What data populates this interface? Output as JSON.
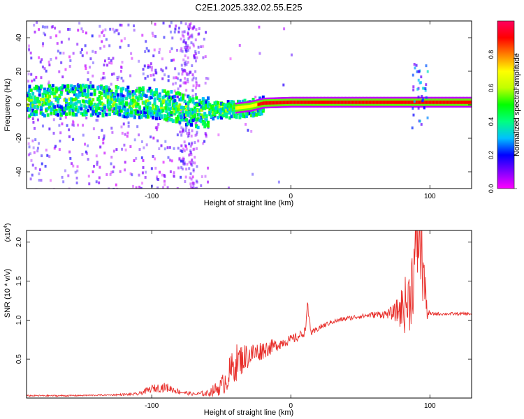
{
  "figure": {
    "title": "C2E1.2025.332.02.55.E25"
  },
  "colorbar": {
    "label": "Normalized spectral amplitude",
    "ticks": [
      "0.0",
      "0.2",
      "0.4",
      "0.6",
      "0.8"
    ],
    "tick_values": [
      0.0,
      0.2,
      0.4,
      0.6,
      0.8
    ],
    "colormap": [
      "#ff00ff",
      "#8000ff",
      "#0000ff",
      "#00c0ff",
      "#00ff80",
      "#00ff00",
      "#c0ff00",
      "#ffff00",
      "#ff8000",
      "#ff0000",
      "#ff0060"
    ]
  },
  "chart_data": [
    {
      "type": "heatmap",
      "title": "C2E1.2025.332.02.55.E25",
      "xlabel": "Height of straight line (km)",
      "ylabel": "Frequency (Hz)",
      "xlim": [
        -190,
        130
      ],
      "ylim": [
        -50,
        50
      ],
      "xticks": [
        -100,
        0,
        100
      ],
      "xtick_labels": [
        "-100",
        "0",
        "100"
      ],
      "yticks": [
        40,
        20,
        0,
        -20,
        -40
      ],
      "ytick_labels": [
        "40",
        "20",
        "0",
        "-20",
        "-40"
      ],
      "value_label": "Normalized spectral amplitude",
      "value_range": [
        0,
        1
      ],
      "ridge": {
        "description": "dominant frequency vs height",
        "x": [
          -190,
          -160,
          -130,
          -100,
          -80,
          -70,
          -60,
          -50,
          -40,
          -30,
          -20,
          0,
          20,
          40,
          60,
          80,
          90,
          100,
          130
        ],
        "y": [
          3,
          4,
          3,
          2,
          -1,
          -4,
          -3,
          -2,
          -2,
          -1,
          1,
          1.5,
          1.5,
          1.5,
          1.5,
          1.5,
          1.5,
          1.5,
          1.5
        ]
      },
      "grid": false
    },
    {
      "type": "line",
      "xlabel": "Height of straight line (km)",
      "ylabel": "SNR (10 * v/v)",
      "scale_label": "(x10",
      "scale_exponent": "4",
      "xlim": [
        -190,
        130
      ],
      "ylim": [
        0,
        2.15
      ],
      "xticks": [
        -100,
        0,
        100
      ],
      "xtick_labels": [
        "-100",
        "0",
        "100"
      ],
      "yticks": [
        0.5,
        1.0,
        1.5,
        2.0
      ],
      "ytick_labels": [
        "0.5",
        "1.0",
        "1.5",
        "2.0"
      ],
      "series": [
        {
          "color": "#e8302c",
          "x": [
            -190,
            -160,
            -130,
            -110,
            -100,
            -90,
            -80,
            -70,
            -60,
            -50,
            -45,
            -40,
            -35,
            -30,
            -25,
            -20,
            -15,
            -10,
            -5,
            0,
            5,
            10,
            12,
            15,
            20,
            30,
            40,
            50,
            60,
            70,
            75,
            80,
            85,
            88,
            92,
            95,
            98,
            100,
            110,
            120,
            130
          ],
          "y": [
            0.03,
            0.03,
            0.04,
            0.05,
            0.12,
            0.14,
            0.08,
            0.05,
            0.06,
            0.15,
            0.28,
            0.45,
            0.5,
            0.55,
            0.58,
            0.62,
            0.65,
            0.68,
            0.72,
            0.75,
            0.78,
            0.85,
            1.15,
            0.82,
            0.9,
            0.98,
            1.02,
            1.05,
            1.07,
            1.08,
            1.1,
            1.15,
            1.25,
            1.6,
            2.1,
            1.7,
            1.1,
            1.08,
            1.08,
            1.08,
            1.08
          ],
          "noise": [
            0.01,
            0.01,
            0.01,
            0.02,
            0.05,
            0.06,
            0.03,
            0.02,
            0.04,
            0.12,
            0.2,
            0.25,
            0.2,
            0.16,
            0.14,
            0.12,
            0.1,
            0.08,
            0.07,
            0.06,
            0.06,
            0.06,
            0.1,
            0.05,
            0.04,
            0.03,
            0.03,
            0.03,
            0.04,
            0.06,
            0.12,
            0.3,
            0.45,
            0.55,
            0.6,
            0.55,
            0.1,
            0.02,
            0.02,
            0.02,
            0.02
          ]
        }
      ],
      "grid": false
    }
  ]
}
